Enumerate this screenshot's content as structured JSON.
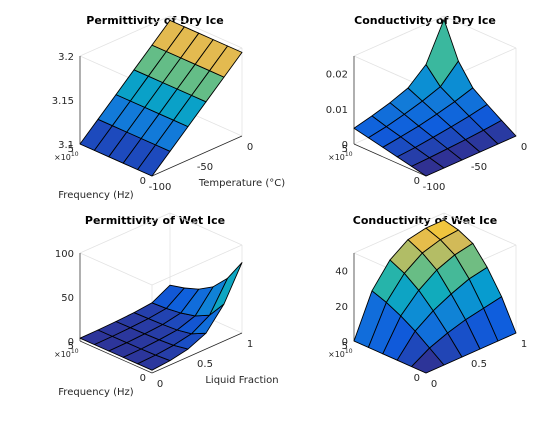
{
  "figure": {
    "background": "#ffffff",
    "colormap": "parula"
  },
  "chart_data": [
    {
      "type": "surface",
      "title": "Permittivity of Dry Ice",
      "xlabel": "Temperature (°C)",
      "ylabel": "Frequency (Hz)",
      "zlabel": "",
      "x_label_shown": true,
      "y_label_shown": true,
      "xlim": [
        -100,
        0
      ],
      "ylim": [
        0,
        5
      ],
      "zlim": [
        3.1,
        3.2
      ],
      "xticks": [
        "-100",
        "-50",
        "0"
      ],
      "yticks": [
        "0",
        "5"
      ],
      "zticks": [
        "3.1",
        "3.15",
        "3.2"
      ],
      "y_exponent": "×10",
      "y_exponent_power": "10",
      "x": [
        -100,
        -80,
        -60,
        -40,
        -20,
        0
      ],
      "y": [
        0,
        1,
        2,
        3,
        4,
        5
      ],
      "z": [
        [
          3.1,
          3.119,
          3.138,
          3.157,
          3.176,
          3.195
        ],
        [
          3.1,
          3.119,
          3.138,
          3.157,
          3.176,
          3.195
        ],
        [
          3.1,
          3.119,
          3.138,
          3.157,
          3.176,
          3.195
        ],
        [
          3.1,
          3.119,
          3.138,
          3.157,
          3.176,
          3.195
        ],
        [
          3.1,
          3.119,
          3.138,
          3.157,
          3.176,
          3.195
        ],
        [
          3.1,
          3.119,
          3.138,
          3.157,
          3.176,
          3.195
        ]
      ]
    },
    {
      "type": "surface",
      "title": "Conductivity of Dry Ice",
      "xlabel": "",
      "ylabel": "",
      "zlabel": "",
      "x_label_shown": false,
      "y_label_shown": false,
      "xlim": [
        -100,
        0
      ],
      "ylim": [
        0,
        5
      ],
      "zlim": [
        0,
        0.025
      ],
      "xticks": [
        "-100",
        "-50",
        "0"
      ],
      "yticks": [
        "0",
        "5"
      ],
      "zticks": [
        "0",
        "0.01",
        "0.02"
      ],
      "y_exponent": "×10",
      "y_exponent_power": "10",
      "x": [
        -100,
        -80,
        -60,
        -40,
        -20,
        0
      ],
      "y": [
        0,
        1,
        2,
        3,
        4,
        5
      ],
      "z": [
        [
          0.0,
          0.0,
          0.0,
          0.0,
          0.0,
          0.0
        ],
        [
          0.0009,
          0.0011,
          0.0014,
          0.0017,
          0.0021,
          0.0026
        ],
        [
          0.0018,
          0.0022,
          0.0028,
          0.0035,
          0.0043,
          0.0053
        ],
        [
          0.0027,
          0.0034,
          0.0042,
          0.0053,
          0.0066,
          0.0082
        ],
        [
          0.0036,
          0.0045,
          0.0057,
          0.0072,
          0.009,
          0.014
        ],
        [
          0.0045,
          0.0057,
          0.0072,
          0.0091,
          0.0135,
          0.024
        ]
      ]
    },
    {
      "type": "surface",
      "title": "Permittivity of Wet Ice",
      "xlabel": "Liquid Fraction",
      "ylabel": "Frequency (Hz)",
      "zlabel": "",
      "x_label_shown": true,
      "y_label_shown": true,
      "xlim": [
        0,
        1
      ],
      "ylim": [
        0,
        5
      ],
      "zlim": [
        0,
        100
      ],
      "xticks": [
        "0",
        "0.5",
        "1"
      ],
      "yticks": [
        "0",
        "5"
      ],
      "zticks": [
        "0",
        "50",
        "100"
      ],
      "y_exponent": "×10",
      "y_exponent_power": "10",
      "x": [
        0,
        0.2,
        0.4,
        0.6,
        0.8,
        1.0
      ],
      "y": [
        0,
        1,
        2,
        3,
        4,
        5
      ],
      "z": [
        [
          3.2,
          5,
          9,
          18,
          42,
          80
        ],
        [
          3.2,
          4,
          6,
          10,
          22,
          55
        ],
        [
          3.2,
          3.6,
          5,
          7,
          14,
          38
        ],
        [
          3.2,
          3.5,
          4.5,
          6,
          10,
          28
        ],
        [
          3.2,
          3.4,
          4.2,
          5.5,
          8,
          22
        ],
        [
          3.2,
          3.4,
          4,
          5,
          7,
          18
        ]
      ]
    },
    {
      "type": "surface",
      "title": "Conductivity of Wet Ice",
      "xlabel": "",
      "ylabel": "",
      "zlabel": "",
      "x_label_shown": false,
      "y_label_shown": false,
      "xlim": [
        0,
        1
      ],
      "ylim": [
        0,
        5
      ],
      "zlim": [
        0,
        50
      ],
      "xticks": [
        "0",
        "0.5",
        "1"
      ],
      "yticks": [
        "0",
        "5"
      ],
      "zticks": [
        "0",
        "20",
        "40"
      ],
      "y_exponent": "×10",
      "y_exponent_power": "10",
      "x": [
        0,
        0.2,
        0.4,
        0.6,
        0.8,
        1.0
      ],
      "y": [
        0,
        1,
        2,
        3,
        4,
        5
      ],
      "z": [
        [
          0,
          0,
          0,
          0,
          0,
          0
        ],
        [
          0,
          6,
          10,
          13,
          15,
          17
        ],
        [
          0,
          12,
          19,
          24,
          28,
          30
        ],
        [
          0,
          17,
          27,
          34,
          38,
          40
        ],
        [
          0,
          21,
          33,
          40,
          43,
          44
        ],
        [
          0,
          24,
          37,
          44,
          46,
          46
        ]
      ]
    }
  ]
}
